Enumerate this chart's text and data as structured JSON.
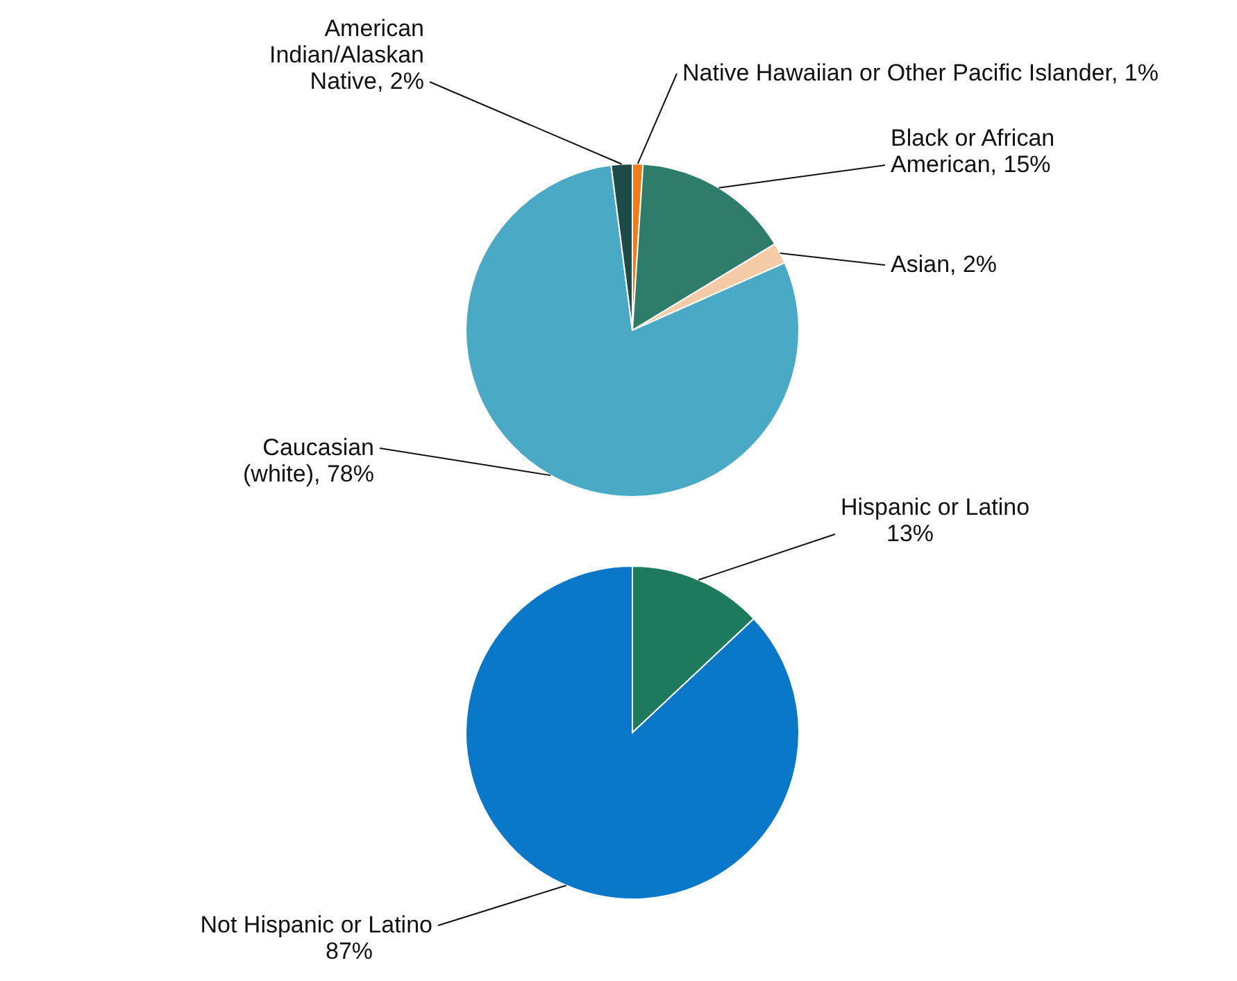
{
  "chart_data": [
    {
      "type": "pie",
      "categories": [
        "Native Hawaiian or Other Pacific Islander",
        "Black or African American",
        "Asian",
        "Caucasian (white)",
        "American Indian/Alaskan Native"
      ],
      "values": [
        1,
        15,
        2,
        78,
        2
      ],
      "value_labels": [
        "1%",
        "15%",
        "2%",
        "78%",
        "2%"
      ],
      "colors": [
        "#f07d1a",
        "#2e7d6b",
        "#f5cba7",
        "#4aaac6",
        "#1e4a48"
      ],
      "legend": false
    },
    {
      "type": "pie",
      "categories": [
        "Hispanic or Latino",
        "Not Hispanic or Latino"
      ],
      "values": [
        13,
        87
      ],
      "value_labels": [
        "13%",
        "87%"
      ],
      "colors": [
        "#1e7a5c",
        "#0a78c8"
      ],
      "legend": false
    }
  ]
}
